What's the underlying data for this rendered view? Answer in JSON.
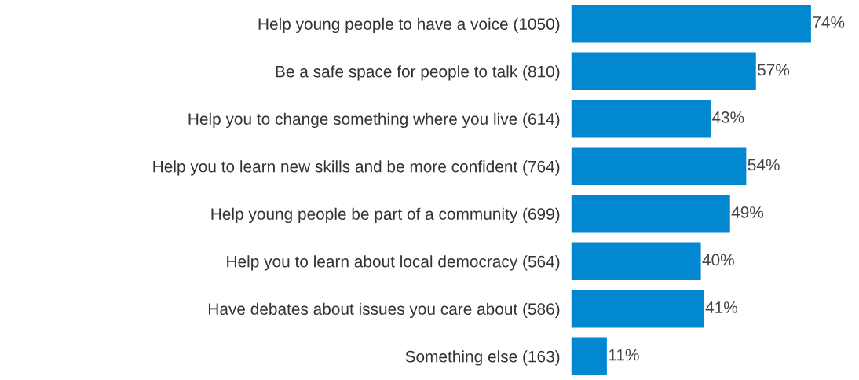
{
  "chart_data": {
    "type": "bar",
    "orientation": "horizontal",
    "categories": [
      "Help young people to have a voice (1050)",
      "Be a safe space for people to talk (810)",
      "Help you to change something where you live (614)",
      "Help you to learn new skills and be more confident (764)",
      "Help young people be part of a community (699)",
      "Help you to learn about local democracy (564)",
      "Have debates about issues you care about (586)",
      "Something else (163)"
    ],
    "values": [
      74,
      57,
      43,
      54,
      49,
      40,
      41,
      11
    ],
    "value_labels": [
      "74%",
      "57%",
      "43%",
      "54%",
      "49%",
      "40%",
      "41%",
      "11%"
    ],
    "color": "#0288d1",
    "tick_labels": "y",
    "grid": false,
    "legend": false
  }
}
